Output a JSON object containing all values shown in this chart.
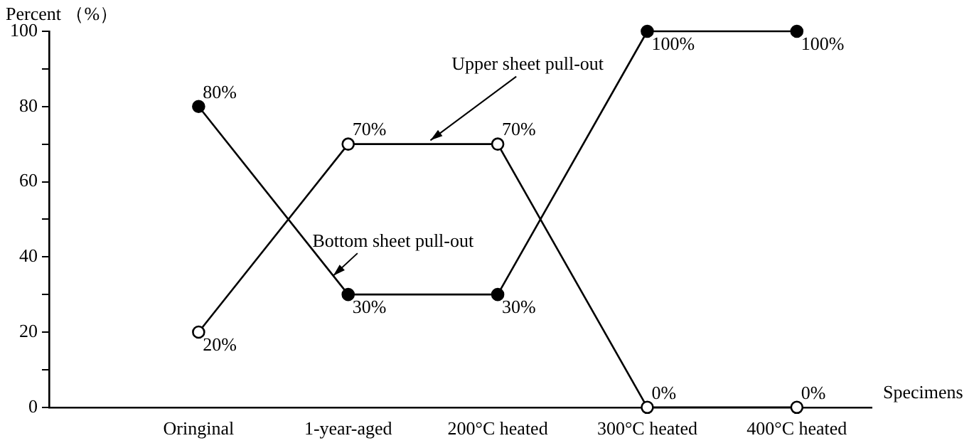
{
  "chart_data": {
    "type": "line",
    "ylabel": "Percent （%）",
    "xlabel": "Specimens",
    "categories": [
      "Oringinal",
      "1-year-aged",
      "200°C heated",
      "300°C heated",
      "400°C heated"
    ],
    "series": [
      {
        "name": "Bottom sheet pull-out",
        "color": "#000000",
        "values": [
          80,
          30,
          30,
          100,
          100
        ],
        "value_labels": [
          "80%",
          "30%",
          "30%",
          "100%",
          "100%"
        ]
      },
      {
        "name": "Upper sheet pull-out",
        "color": "#000000",
        "values": [
          20,
          70,
          70,
          0,
          0
        ],
        "value_labels": [
          "20%",
          "70%",
          "70%",
          "0%",
          "0%"
        ]
      }
    ],
    "ylim": [
      0,
      100
    ],
    "yticks": [
      0,
      {
        "value": 10,
        "label": null
      },
      20,
      {
        "value": 30,
        "label": null
      },
      40,
      {
        "value": 50,
        "label": null
      },
      60,
      {
        "value": 70,
        "label": null
      },
      80,
      {
        "value": 90,
        "label": null
      },
      100
    ],
    "grid": false,
    "legend": false,
    "marker": "circle",
    "line_style": "solid"
  }
}
